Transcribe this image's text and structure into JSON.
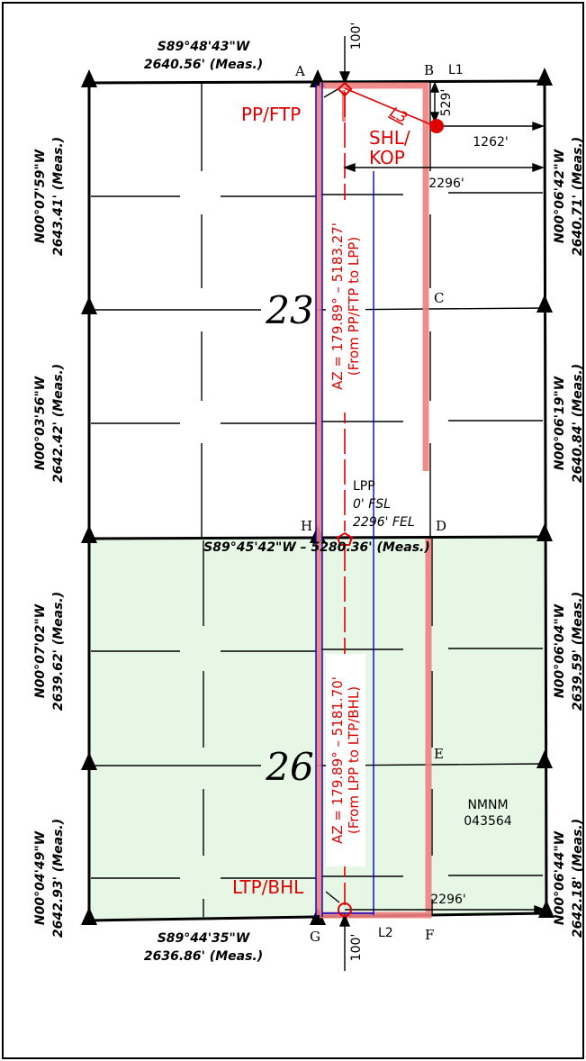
{
  "sections": {
    "upper": {
      "number": "23"
    },
    "lower": {
      "number": "26",
      "lease": {
        "line1": "NMNM",
        "line2": "043564"
      }
    }
  },
  "bearings": {
    "top": {
      "bearing": "S89°48'43\"W",
      "distance": "2640.56' (Meas.)"
    },
    "middle": "S89°45'42\"W – 5280.36' (Meas.)",
    "bottom": {
      "bearing": "S89°44'35\"W",
      "distance": "2636.86' (Meas.)"
    },
    "left": [
      {
        "bearing": "N00°07'59\"W",
        "distance": "2643.41' (Meas.)"
      },
      {
        "bearing": "N00°03'56\"W",
        "distance": "2642.42' (Meas.)"
      },
      {
        "bearing": "N00°07'02\"W",
        "distance": "2639.62' (Meas.)"
      },
      {
        "bearing": "N00°04'49\"W",
        "distance": "2642.93' (Meas.)"
      }
    ],
    "right": [
      {
        "bearing": "N00°06'42\"W",
        "distance": "2640.71' (Meas.)"
      },
      {
        "bearing": "N00°06'19\"W",
        "distance": "2640.84' (Meas.)"
      },
      {
        "bearing": "N00°06'04\"W",
        "distance": "2639.59' (Meas.)"
      },
      {
        "bearing": "N00°06'44\"W",
        "distance": "2642.18' (Meas.)"
      }
    ]
  },
  "points": {
    "A": "A",
    "B": "B",
    "C": "C",
    "D": "D",
    "E": "E",
    "F": "F",
    "G": "G",
    "H": "H"
  },
  "calls": {
    "L1": "L1",
    "L2": "L2",
    "L3": "L3"
  },
  "dimensions": {
    "setback_top": "100'",
    "setback_bottom": "100'",
    "shl_from_north": "529'",
    "shl_from_east": "1262'",
    "fel_top": "2296'",
    "fel_bottom": "2296'"
  },
  "wellbore_labels": {
    "pp_ftp": "PP/FTP",
    "shl": "SHL/",
    "kop": "KOP",
    "lpp": "LPP",
    "lpp_fsl": "0' FSL",
    "lpp_fel": "2296' FEL",
    "ltp_bhl": "LTP/BHL"
  },
  "azimuths": {
    "upper": {
      "line1": "AZ = 179.89° – 5183.27'",
      "line2": "(From PP/FTP to LPP)"
    },
    "lower": {
      "line1": "AZ = 179.89° – 5181.70'",
      "line2": "(From LPP to LTP/BHL)"
    }
  },
  "colors": {
    "lower_section_fill": "#e6f7e6",
    "boundary": "#000000",
    "wellbore": "#ff0000",
    "buffer": "#f08080",
    "spacing_unit": "#0000cc"
  }
}
